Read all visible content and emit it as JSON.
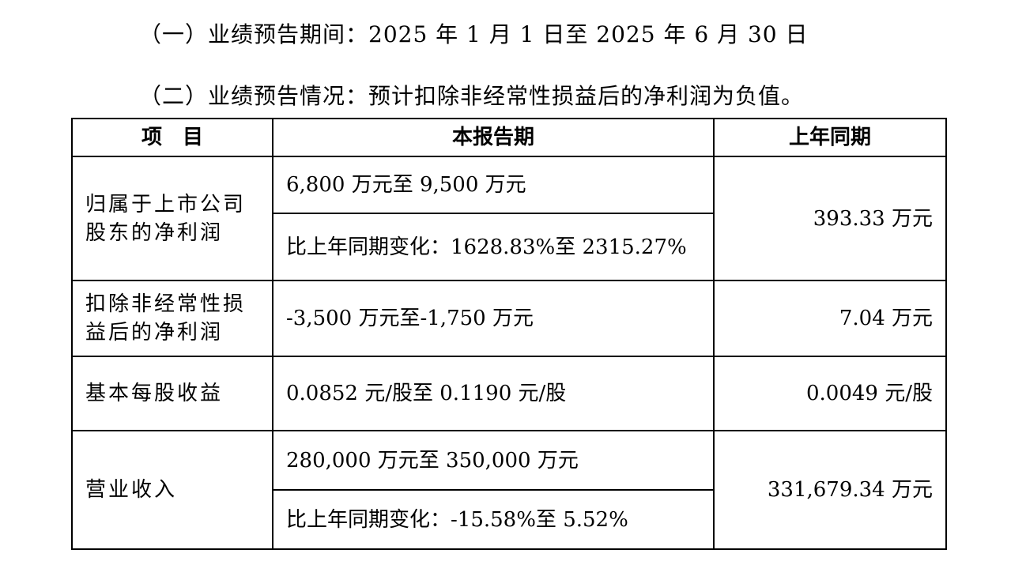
{
  "section": {
    "period_line": "（一）业绩预告期间：2025 年 1 月 1 日至 2025 年 6 月 30 日",
    "status_line": "（二）业绩预告情况：预计扣除非经常性损益后的净利润为负值。"
  },
  "table": {
    "headers": [
      "项　目",
      "本报告期",
      "上年同期"
    ],
    "rows": {
      "net_profit": {
        "item": "归属于上市公司股东的净利润",
        "current_range": "6,800 万元至 9,500 万元",
        "current_change": "比上年同期变化：1628.83%至 2315.27%",
        "prior": "393.33 万元"
      },
      "net_profit_excl": {
        "item": "扣除非经常性损益后的净利润",
        "current_range": "-3,500 万元至-1,750 万元",
        "prior": "7.04 万元"
      },
      "eps": {
        "item": "基本每股收益",
        "current_range": "0.0852 元/股至 0.1190 元/股",
        "prior": "0.0049 元/股"
      },
      "revenue": {
        "item": "营业收入",
        "current_range": "280,000 万元至 350,000 万元",
        "current_change": "比上年同期变化：-15.58%至 5.52%",
        "prior": "331,679.34 万元"
      }
    }
  }
}
